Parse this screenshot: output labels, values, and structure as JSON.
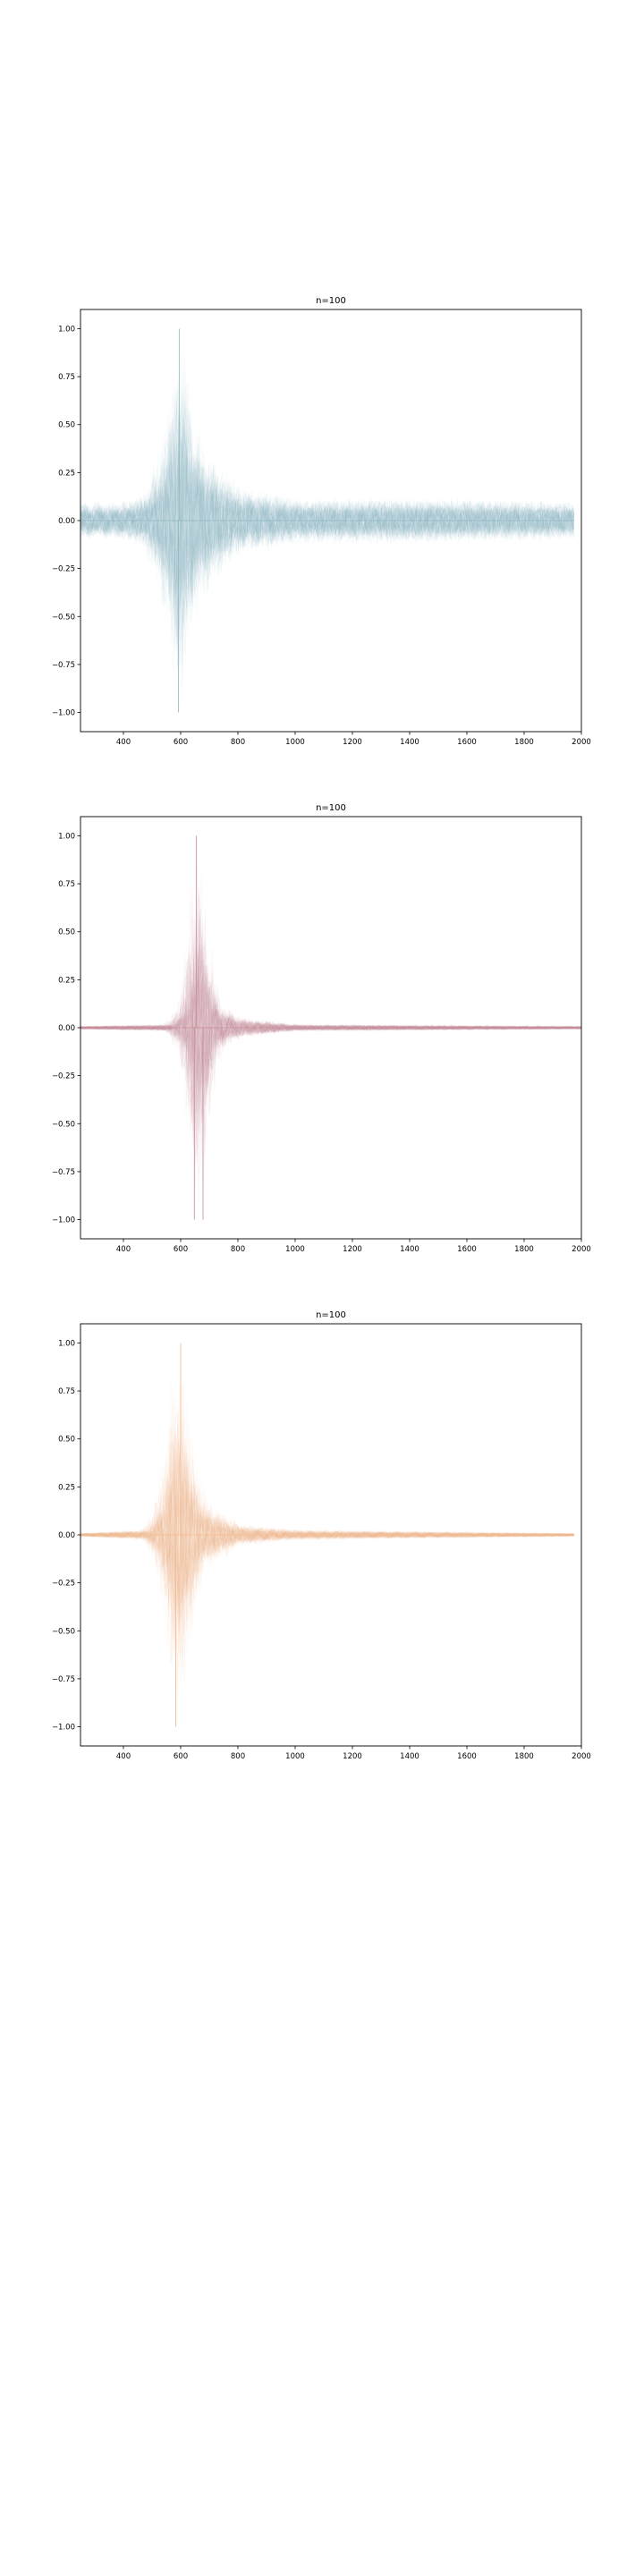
{
  "chart_data": [
    {
      "type": "line",
      "title": "n=100",
      "xlabel": "",
      "ylabel": "",
      "xlim": [
        250,
        2000
      ],
      "ylim": [
        -1.1,
        1.1
      ],
      "xticks": [
        "400",
        "600",
        "800",
        "1000",
        "1200",
        "1400",
        "1600",
        "1800",
        "2000"
      ],
      "yticks": [
        "1.00",
        "0.75",
        "0.50",
        "0.25",
        "0.00",
        "−0.25",
        "−0.50",
        "−0.75",
        "−1.00"
      ],
      "trace_count": 100,
      "trace_x_range": [
        250,
        1975
      ],
      "color": "#8fb8c0",
      "grid": false,
      "legend": "none",
      "envelope_points": [
        {
          "x": 250,
          "y": 0.1
        },
        {
          "x": 400,
          "y": 0.1
        },
        {
          "x": 480,
          "y": 0.15
        },
        {
          "x": 540,
          "y": 0.4
        },
        {
          "x": 580,
          "y": 0.8
        },
        {
          "x": 595,
          "y": 1.0
        },
        {
          "x": 620,
          "y": 0.7
        },
        {
          "x": 660,
          "y": 0.45
        },
        {
          "x": 720,
          "y": 0.3
        },
        {
          "x": 800,
          "y": 0.18
        },
        {
          "x": 1000,
          "y": 0.12
        },
        {
          "x": 1500,
          "y": 0.12
        },
        {
          "x": 1975,
          "y": 0.1
        }
      ],
      "extreme_points": [
        {
          "x": 595,
          "y": 1.0
        },
        {
          "x": 592,
          "y": -1.0
        }
      ]
    },
    {
      "type": "line",
      "title": "n=100",
      "xlabel": "",
      "ylabel": "",
      "xlim": [
        250,
        2000
      ],
      "ylim": [
        -1.1,
        1.1
      ],
      "xticks": [
        "400",
        "600",
        "800",
        "1000",
        "1200",
        "1400",
        "1600",
        "1800",
        "2000"
      ],
      "yticks": [
        "1.00",
        "0.75",
        "0.50",
        "0.25",
        "0.00",
        "−0.25",
        "−0.50",
        "−0.75",
        "−1.00"
      ],
      "trace_count": 100,
      "trace_x_range": [
        250,
        2000
      ],
      "color": "#c98b95",
      "grid": false,
      "legend": "none",
      "envelope_points": [
        {
          "x": 250,
          "y": 0.01
        },
        {
          "x": 560,
          "y": 0.02
        },
        {
          "x": 610,
          "y": 0.15
        },
        {
          "x": 640,
          "y": 0.6
        },
        {
          "x": 660,
          "y": 1.0
        },
        {
          "x": 690,
          "y": 0.5
        },
        {
          "x": 730,
          "y": 0.15
        },
        {
          "x": 800,
          "y": 0.06
        },
        {
          "x": 1000,
          "y": 0.02
        },
        {
          "x": 2000,
          "y": 0.01
        }
      ],
      "extreme_points": [
        {
          "x": 655,
          "y": 1.0
        },
        {
          "x": 648,
          "y": -1.0
        },
        {
          "x": 678,
          "y": -1.0
        }
      ]
    },
    {
      "type": "line",
      "title": "n=100",
      "xlabel": "",
      "ylabel": "",
      "xlim": [
        250,
        2000
      ],
      "ylim": [
        -1.1,
        1.1
      ],
      "xticks": [
        "400",
        "600",
        "800",
        "1000",
        "1200",
        "1400",
        "1600",
        "1800",
        "2000"
      ],
      "yticks": [
        "1.00",
        "0.75",
        "0.50",
        "0.25",
        "0.00",
        "−0.25",
        "−0.50",
        "−0.75",
        "−1.00"
      ],
      "trace_count": 100,
      "trace_x_range": [
        250,
        1975
      ],
      "color": "#f5b98a",
      "grid": false,
      "legend": "none",
      "envelope_points": [
        {
          "x": 250,
          "y": 0.01
        },
        {
          "x": 480,
          "y": 0.03
        },
        {
          "x": 520,
          "y": 0.15
        },
        {
          "x": 560,
          "y": 0.5
        },
        {
          "x": 590,
          "y": 1.0
        },
        {
          "x": 620,
          "y": 0.6
        },
        {
          "x": 680,
          "y": 0.2
        },
        {
          "x": 800,
          "y": 0.06
        },
        {
          "x": 1000,
          "y": 0.03
        },
        {
          "x": 1975,
          "y": 0.01
        }
      ],
      "extreme_points": [
        {
          "x": 600,
          "y": 1.0
        },
        {
          "x": 583,
          "y": -1.0
        }
      ]
    }
  ]
}
